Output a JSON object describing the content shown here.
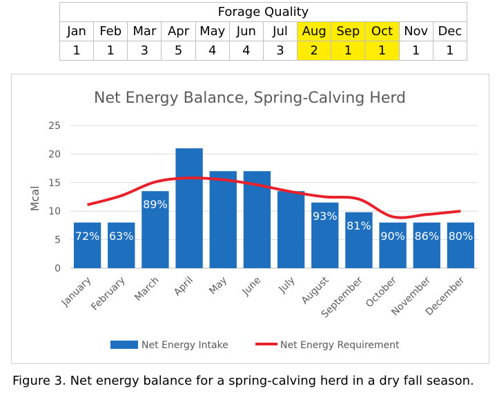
{
  "forage_table": {
    "title": "Forage Quality",
    "months": [
      "Jan",
      "Feb",
      "Mar",
      "Apr",
      "May",
      "Jun",
      "Jul",
      "Aug",
      "Sep",
      "Oct",
      "Nov",
      "Dec"
    ],
    "values": [
      "1",
      "1",
      "3",
      "5",
      "4",
      "4",
      "3",
      "2",
      "1",
      "1",
      "1",
      "1"
    ],
    "highlight_color": "#ffec00",
    "highlighted_months": [
      "Aug",
      "Sep",
      "Oct"
    ]
  },
  "chart_data": {
    "type": "bar",
    "title": "Net Energy Balance, Spring-Calving Herd",
    "ylabel": "Mcal",
    "xlabel": "",
    "ylim": [
      0,
      25
    ],
    "yticks": [
      0,
      5,
      10,
      15,
      20,
      25
    ],
    "categories": [
      "January",
      "February",
      "March",
      "April",
      "May",
      "June",
      "July",
      "August",
      "September",
      "October",
      "November",
      "December"
    ],
    "series": [
      {
        "name": "Net Energy Intake",
        "kind": "bar",
        "color": "#1f6fbf",
        "values": [
          8,
          8,
          13.5,
          21,
          17,
          17,
          13.5,
          11.5,
          9.8,
          8,
          8,
          8
        ]
      },
      {
        "name": "Net Energy Requirement",
        "kind": "line",
        "color": "#e8202a",
        "values": [
          11.1,
          12.7,
          15.1,
          15.8,
          15.5,
          14.6,
          13.4,
          12.5,
          12.1,
          9.0,
          9.4,
          10.0
        ]
      }
    ],
    "bar_labels": [
      "72%",
      "63%",
      "89%",
      "",
      "",
      "",
      "",
      "93%",
      "81%",
      "90%",
      "86%",
      "80%"
    ],
    "legend_position": "bottom",
    "grid": true
  },
  "caption": "Figure 3. Net energy balance for a spring-calving herd in a dry fall season."
}
